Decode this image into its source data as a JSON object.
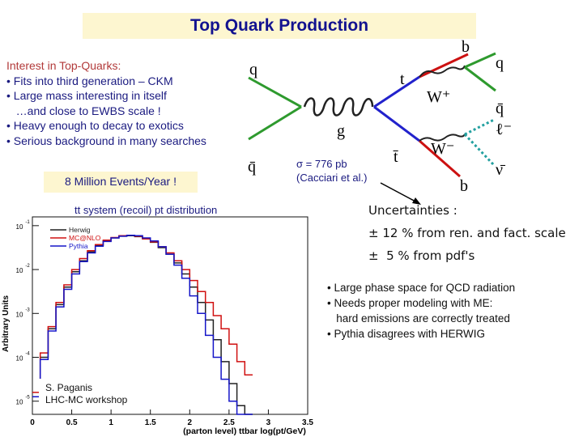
{
  "title": "Top Quark Production",
  "interest": {
    "heading": "Interest in Top-Quarks:",
    "bullets": [
      "• Fits into third generation – CKM",
      "• Large mass interesting in itself",
      "   …and close to EWBS scale !",
      "• Heavy enough to decay to exotics",
      "• Serious background in many searches"
    ]
  },
  "events_box": "8 Million Events/Year !",
  "cross_section": {
    "line1": "σ = 776 pb",
    "line2": "(Cacciari et al.)"
  },
  "diagram": {
    "labels": {
      "q_in_top": "q",
      "q_in_bottom": "q̄",
      "gluon": "g",
      "top": "t",
      "antitop": "t̄",
      "w_plus": "W⁺",
      "w_minus": "W⁻",
      "b_top": "b",
      "b_bottom": "b",
      "q_out1": "q",
      "q_out2": "q̄",
      "lepton": "ℓ⁻",
      "neutrino": "ν̄"
    },
    "colors": {
      "quark": "#2e9a2e",
      "top": "#2222cc",
      "w": "#222222",
      "b": "#cc1111",
      "lepton": "#23a0a0"
    }
  },
  "uncertainties": {
    "heading": "Uncertainties :",
    "line1": "± 12 % from ren. and fact. scale",
    "line2": "±  5 % from pdf's"
  },
  "plot": {
    "title": "tt system (recoil) pt distribution",
    "ylabel": "Arbitrary Units",
    "xlabel": "(parton level) ttbar log(pt/GeV)",
    "xticks": [
      "0",
      "0.5",
      "1",
      "1.5",
      "2",
      "2.5",
      "3",
      "3.5"
    ],
    "yticks": [
      "10",
      "10",
      "10",
      "10",
      "10"
    ],
    "yexps": [
      "-1",
      "-2",
      "-3",
      "-4",
      "-5"
    ],
    "legend": [
      {
        "name": "Herwig",
        "color": "#222222"
      },
      {
        "name": "MC@NLO",
        "color": "#d01010"
      },
      {
        "name": "Pythia",
        "color": "#1515c8"
      }
    ]
  },
  "chart_data": {
    "type": "line",
    "title": "tt system (recoil) pt distribution",
    "xlabel": "(parton level) ttbar log(pt/GeV)",
    "ylabel": "Arbitrary Units",
    "xlim": [
      0,
      3.5
    ],
    "ylim_log10": [
      -5.3,
      -0.8
    ],
    "x": [
      0.05,
      0.15,
      0.25,
      0.35,
      0.45,
      0.55,
      0.65,
      0.75,
      0.85,
      0.95,
      1.05,
      1.15,
      1.25,
      1.35,
      1.45,
      1.55,
      1.65,
      1.75,
      1.85,
      1.95,
      2.05,
      2.15,
      2.25,
      2.35,
      2.45,
      2.55,
      2.65,
      2.75
    ],
    "series": [
      {
        "name": "Herwig",
        "color": "#222222",
        "log10_values": [
          -4.9,
          -4.0,
          -3.35,
          -2.8,
          -2.4,
          -2.05,
          -1.8,
          -1.6,
          -1.45,
          -1.35,
          -1.28,
          -1.24,
          -1.23,
          -1.25,
          -1.3,
          -1.38,
          -1.5,
          -1.65,
          -1.85,
          -2.1,
          -2.4,
          -2.75,
          -3.15,
          -3.6,
          -4.1,
          -4.6,
          -5.1,
          -5.3
        ]
      },
      {
        "name": "MC@NLO",
        "color": "#d01010",
        "log10_values": [
          -4.8,
          -3.9,
          -3.3,
          -2.75,
          -2.35,
          -2.0,
          -1.75,
          -1.57,
          -1.43,
          -1.33,
          -1.27,
          -1.23,
          -1.22,
          -1.24,
          -1.3,
          -1.37,
          -1.48,
          -1.62,
          -1.8,
          -2.0,
          -2.25,
          -2.5,
          -2.75,
          -3.05,
          -3.35,
          -3.7,
          -4.1,
          -4.4
        ]
      },
      {
        "name": "Pythia",
        "color": "#1515c8",
        "log10_values": [
          -4.9,
          -4.05,
          -3.4,
          -2.85,
          -2.45,
          -2.1,
          -1.82,
          -1.62,
          -1.47,
          -1.36,
          -1.28,
          -1.24,
          -1.22,
          -1.23,
          -1.28,
          -1.35,
          -1.48,
          -1.65,
          -1.9,
          -2.2,
          -2.6,
          -3.0,
          -3.5,
          -4.0,
          -4.5,
          -5.0,
          -5.3,
          -5.3
        ]
      }
    ]
  },
  "credit": {
    "line1": "S. Paganis",
    "line2": "LHC-MC workshop"
  },
  "bullets_right": [
    "• Large phase space for QCD radiation",
    "• Needs proper modeling with ME:",
    "   hard emissions are correctly treated",
    "• Pythia disagrees with HERWIG"
  ]
}
